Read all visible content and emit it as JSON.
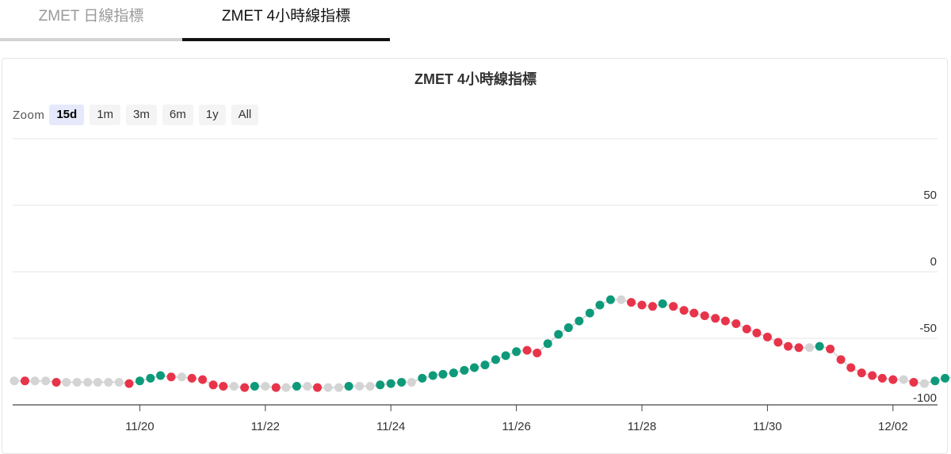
{
  "tabs": [
    {
      "label": "ZMET 日線指標",
      "active": false
    },
    {
      "label": "ZMET 4小時線指標",
      "active": true
    }
  ],
  "zoom": {
    "label": "Zoom",
    "buttons": [
      "15d",
      "1m",
      "3m",
      "6m",
      "1y",
      "All"
    ],
    "active": "15d"
  },
  "colors": {
    "up": "#0e9a7a",
    "down": "#e8344a",
    "flat": "#d4d4d4",
    "line": "#cfcfcf",
    "grid": "#e6e6e6"
  },
  "chart_data": {
    "type": "scatter",
    "title": "ZMET 4小時線指標",
    "x_ticks": [
      "11/20",
      "11/22",
      "11/24",
      "11/26",
      "11/28",
      "11/30",
      "12/02"
    ],
    "y_ticks": [
      "50",
      "0",
      "-50",
      "-100"
    ],
    "ylim": [
      -100,
      100
    ],
    "y_axis_position": "right",
    "grid": true,
    "x_unit": "days since 11/18 00:00 (data sampled every 4 hours)",
    "points": [
      {
        "x": 0.0,
        "y": -82,
        "c": "flat"
      },
      {
        "x": 0.17,
        "y": -82,
        "c": "down"
      },
      {
        "x": 0.33,
        "y": -82,
        "c": "flat"
      },
      {
        "x": 0.5,
        "y": -82,
        "c": "flat"
      },
      {
        "x": 0.67,
        "y": -83,
        "c": "down"
      },
      {
        "x": 0.83,
        "y": -83,
        "c": "flat"
      },
      {
        "x": 1.0,
        "y": -83,
        "c": "flat"
      },
      {
        "x": 1.17,
        "y": -83,
        "c": "flat"
      },
      {
        "x": 1.33,
        "y": -83,
        "c": "flat"
      },
      {
        "x": 1.5,
        "y": -83,
        "c": "flat"
      },
      {
        "x": 1.67,
        "y": -83,
        "c": "flat"
      },
      {
        "x": 1.83,
        "y": -84,
        "c": "down"
      },
      {
        "x": 2.0,
        "y": -82,
        "c": "up"
      },
      {
        "x": 2.17,
        "y": -80,
        "c": "up"
      },
      {
        "x": 2.33,
        "y": -78,
        "c": "up"
      },
      {
        "x": 2.5,
        "y": -79,
        "c": "down"
      },
      {
        "x": 2.67,
        "y": -79,
        "c": "flat"
      },
      {
        "x": 2.83,
        "y": -80,
        "c": "down"
      },
      {
        "x": 3.0,
        "y": -81,
        "c": "down"
      },
      {
        "x": 3.17,
        "y": -85,
        "c": "down"
      },
      {
        "x": 3.33,
        "y": -86,
        "c": "down"
      },
      {
        "x": 3.5,
        "y": -86,
        "c": "flat"
      },
      {
        "x": 3.67,
        "y": -87,
        "c": "down"
      },
      {
        "x": 3.83,
        "y": -86,
        "c": "up"
      },
      {
        "x": 4.0,
        "y": -86,
        "c": "flat"
      },
      {
        "x": 4.17,
        "y": -87,
        "c": "down"
      },
      {
        "x": 4.33,
        "y": -87,
        "c": "flat"
      },
      {
        "x": 4.5,
        "y": -86,
        "c": "up"
      },
      {
        "x": 4.67,
        "y": -86,
        "c": "flat"
      },
      {
        "x": 4.83,
        "y": -87,
        "c": "down"
      },
      {
        "x": 5.0,
        "y": -87,
        "c": "flat"
      },
      {
        "x": 5.17,
        "y": -87,
        "c": "flat"
      },
      {
        "x": 5.33,
        "y": -86,
        "c": "up"
      },
      {
        "x": 5.5,
        "y": -86,
        "c": "flat"
      },
      {
        "x": 5.67,
        "y": -86,
        "c": "flat"
      },
      {
        "x": 5.83,
        "y": -85,
        "c": "up"
      },
      {
        "x": 6.0,
        "y": -84,
        "c": "up"
      },
      {
        "x": 6.17,
        "y": -83,
        "c": "up"
      },
      {
        "x": 6.33,
        "y": -83,
        "c": "flat"
      },
      {
        "x": 6.5,
        "y": -80,
        "c": "up"
      },
      {
        "x": 6.67,
        "y": -78,
        "c": "up"
      },
      {
        "x": 6.83,
        "y": -77,
        "c": "up"
      },
      {
        "x": 7.0,
        "y": -76,
        "c": "up"
      },
      {
        "x": 7.17,
        "y": -74,
        "c": "up"
      },
      {
        "x": 7.33,
        "y": -72,
        "c": "up"
      },
      {
        "x": 7.5,
        "y": -70,
        "c": "up"
      },
      {
        "x": 7.67,
        "y": -66,
        "c": "up"
      },
      {
        "x": 7.83,
        "y": -63,
        "c": "up"
      },
      {
        "x": 8.0,
        "y": -60,
        "c": "up"
      },
      {
        "x": 8.17,
        "y": -59,
        "c": "down"
      },
      {
        "x": 8.33,
        "y": -61,
        "c": "down"
      },
      {
        "x": 8.5,
        "y": -54,
        "c": "up"
      },
      {
        "x": 8.67,
        "y": -47,
        "c": "up"
      },
      {
        "x": 8.83,
        "y": -42,
        "c": "up"
      },
      {
        "x": 9.0,
        "y": -37,
        "c": "up"
      },
      {
        "x": 9.17,
        "y": -31,
        "c": "up"
      },
      {
        "x": 9.33,
        "y": -25,
        "c": "up"
      },
      {
        "x": 9.5,
        "y": -21,
        "c": "up"
      },
      {
        "x": 9.67,
        "y": -21,
        "c": "flat"
      },
      {
        "x": 9.83,
        "y": -23,
        "c": "down"
      },
      {
        "x": 10.0,
        "y": -25,
        "c": "down"
      },
      {
        "x": 10.17,
        "y": -26,
        "c": "down"
      },
      {
        "x": 10.33,
        "y": -24,
        "c": "up"
      },
      {
        "x": 10.5,
        "y": -26,
        "c": "down"
      },
      {
        "x": 10.67,
        "y": -29,
        "c": "down"
      },
      {
        "x": 10.83,
        "y": -31,
        "c": "down"
      },
      {
        "x": 11.0,
        "y": -33,
        "c": "down"
      },
      {
        "x": 11.17,
        "y": -35,
        "c": "down"
      },
      {
        "x": 11.33,
        "y": -37,
        "c": "down"
      },
      {
        "x": 11.5,
        "y": -39,
        "c": "down"
      },
      {
        "x": 11.67,
        "y": -43,
        "c": "down"
      },
      {
        "x": 11.83,
        "y": -46,
        "c": "down"
      },
      {
        "x": 12.0,
        "y": -49,
        "c": "down"
      },
      {
        "x": 12.17,
        "y": -53,
        "c": "down"
      },
      {
        "x": 12.33,
        "y": -56,
        "c": "down"
      },
      {
        "x": 12.5,
        "y": -57,
        "c": "down"
      },
      {
        "x": 12.67,
        "y": -57,
        "c": "flat"
      },
      {
        "x": 12.83,
        "y": -56,
        "c": "up"
      },
      {
        "x": 13.0,
        "y": -58,
        "c": "down"
      },
      {
        "x": 13.17,
        "y": -66,
        "c": "down"
      },
      {
        "x": 13.33,
        "y": -72,
        "c": "down"
      },
      {
        "x": 13.5,
        "y": -76,
        "c": "down"
      },
      {
        "x": 13.67,
        "y": -78,
        "c": "down"
      },
      {
        "x": 13.83,
        "y": -80,
        "c": "down"
      },
      {
        "x": 14.0,
        "y": -81,
        "c": "down"
      },
      {
        "x": 14.17,
        "y": -81,
        "c": "flat"
      },
      {
        "x": 14.33,
        "y": -83,
        "c": "down"
      },
      {
        "x": 14.5,
        "y": -84,
        "c": "flat"
      },
      {
        "x": 14.67,
        "y": -82,
        "c": "up"
      },
      {
        "x": 14.83,
        "y": -80,
        "c": "up"
      },
      {
        "x": 15.0,
        "y": -79,
        "c": "up"
      },
      {
        "x": 15.17,
        "y": -76,
        "c": "up"
      }
    ]
  }
}
